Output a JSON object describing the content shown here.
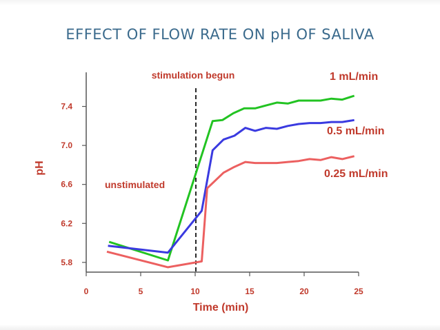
{
  "slide": {
    "title": "EFFECT OF FLOW RATE ON pH OF SALIVA"
  },
  "chart_data": {
    "type": "line",
    "title": "EFFECT OF FLOW RATE ON pH OF SALIVA",
    "xlabel": "Time (min)",
    "ylabel": "pH",
    "xlim": [
      0,
      25
    ],
    "ylim": [
      5.7,
      7.75
    ],
    "x_ticks": [
      0,
      5,
      10,
      15,
      20,
      25
    ],
    "y_ticks": [
      5.8,
      6.2,
      6.6,
      7.0,
      7.4
    ],
    "y_tick_labels": [
      "5.8",
      "6.2",
      "6.6",
      "7.0",
      "7.4"
    ],
    "grid": false,
    "annotations": {
      "stimulation_line_x": 10,
      "stimulation_label": "stimulation begun",
      "unstimulated_label": "unstimulated"
    },
    "series": [
      {
        "name": "1 mL/min",
        "color": "#22c322",
        "points": [
          [
            2.1,
            6.01
          ],
          [
            7.5,
            5.82
          ],
          [
            11.6,
            7.25
          ],
          [
            12.5,
            7.26
          ],
          [
            13.5,
            7.33
          ],
          [
            14.5,
            7.38
          ],
          [
            15.5,
            7.38
          ],
          [
            16.5,
            7.41
          ],
          [
            17.5,
            7.44
          ],
          [
            18.5,
            7.43
          ],
          [
            19.5,
            7.46
          ],
          [
            20.5,
            7.46
          ],
          [
            21.5,
            7.46
          ],
          [
            22.5,
            7.48
          ],
          [
            23.5,
            7.47
          ],
          [
            24.6,
            7.51
          ]
        ]
      },
      {
        "name": "0.5 mL/min",
        "color": "#3a3ae0",
        "points": [
          [
            2.0,
            5.97
          ],
          [
            7.5,
            5.9
          ],
          [
            10.6,
            6.33
          ],
          [
            11.6,
            6.95
          ],
          [
            12.6,
            7.06
          ],
          [
            13.6,
            7.1
          ],
          [
            14.6,
            7.18
          ],
          [
            15.5,
            7.15
          ],
          [
            16.5,
            7.18
          ],
          [
            17.5,
            7.17
          ],
          [
            18.5,
            7.2
          ],
          [
            19.5,
            7.22
          ],
          [
            20.5,
            7.23
          ],
          [
            21.5,
            7.23
          ],
          [
            22.5,
            7.24
          ],
          [
            23.5,
            7.24
          ],
          [
            24.6,
            7.26
          ]
        ]
      },
      {
        "name": "0.25 mL/min",
        "color": "#ec6060",
        "points": [
          [
            1.9,
            5.91
          ],
          [
            7.5,
            5.75
          ],
          [
            10.6,
            5.81
          ],
          [
            11.1,
            6.56
          ],
          [
            12.6,
            6.72
          ],
          [
            13.6,
            6.78
          ],
          [
            14.6,
            6.83
          ],
          [
            15.5,
            6.82
          ],
          [
            16.5,
            6.82
          ],
          [
            17.5,
            6.82
          ],
          [
            18.5,
            6.83
          ],
          [
            19.5,
            6.84
          ],
          [
            20.5,
            6.86
          ],
          [
            21.5,
            6.85
          ],
          [
            22.5,
            6.88
          ],
          [
            23.5,
            6.86
          ],
          [
            24.6,
            6.89
          ]
        ]
      }
    ]
  }
}
